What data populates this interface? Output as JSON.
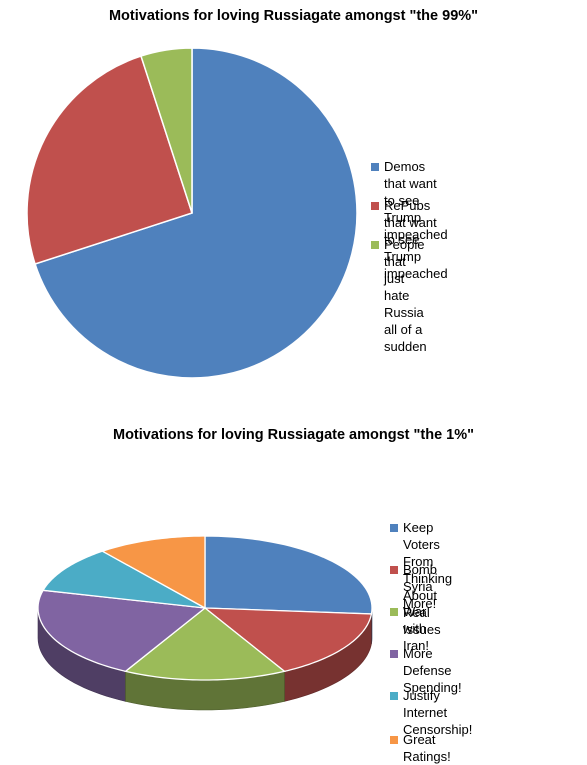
{
  "chart_data": [
    {
      "type": "pie",
      "title": "Motivations for loving Russiagate amongst \"the 99%\"",
      "categories": [
        "Demos that want to see\nTrump impeached",
        "RePubs that want to see\nTrump impeached",
        "People that just hate Russia\nall of a sudden"
      ],
      "values": [
        70,
        25,
        5
      ],
      "colors": [
        "#4F81BD",
        "#C0504D",
        "#9BBB59"
      ],
      "legend": "right"
    },
    {
      "type": "pie",
      "title": "Motivations for loving Russiagate amongst \"the 1%\"",
      "categories": [
        "Keep Voters From\nThinking About Real Issues",
        "Bomb Syria More!",
        "War with Iran!",
        "More Defense Spending!",
        "Justify Internet\nCensorship!",
        "Great Ratings!"
      ],
      "values": [
        25,
        15,
        15,
        20,
        10,
        10
      ],
      "colors": [
        "#4F81BD",
        "#C0504D",
        "#9BBB59",
        "#8064A2",
        "#4BACC6",
        "#F79646"
      ],
      "legend": "right",
      "style": "3d"
    }
  ]
}
